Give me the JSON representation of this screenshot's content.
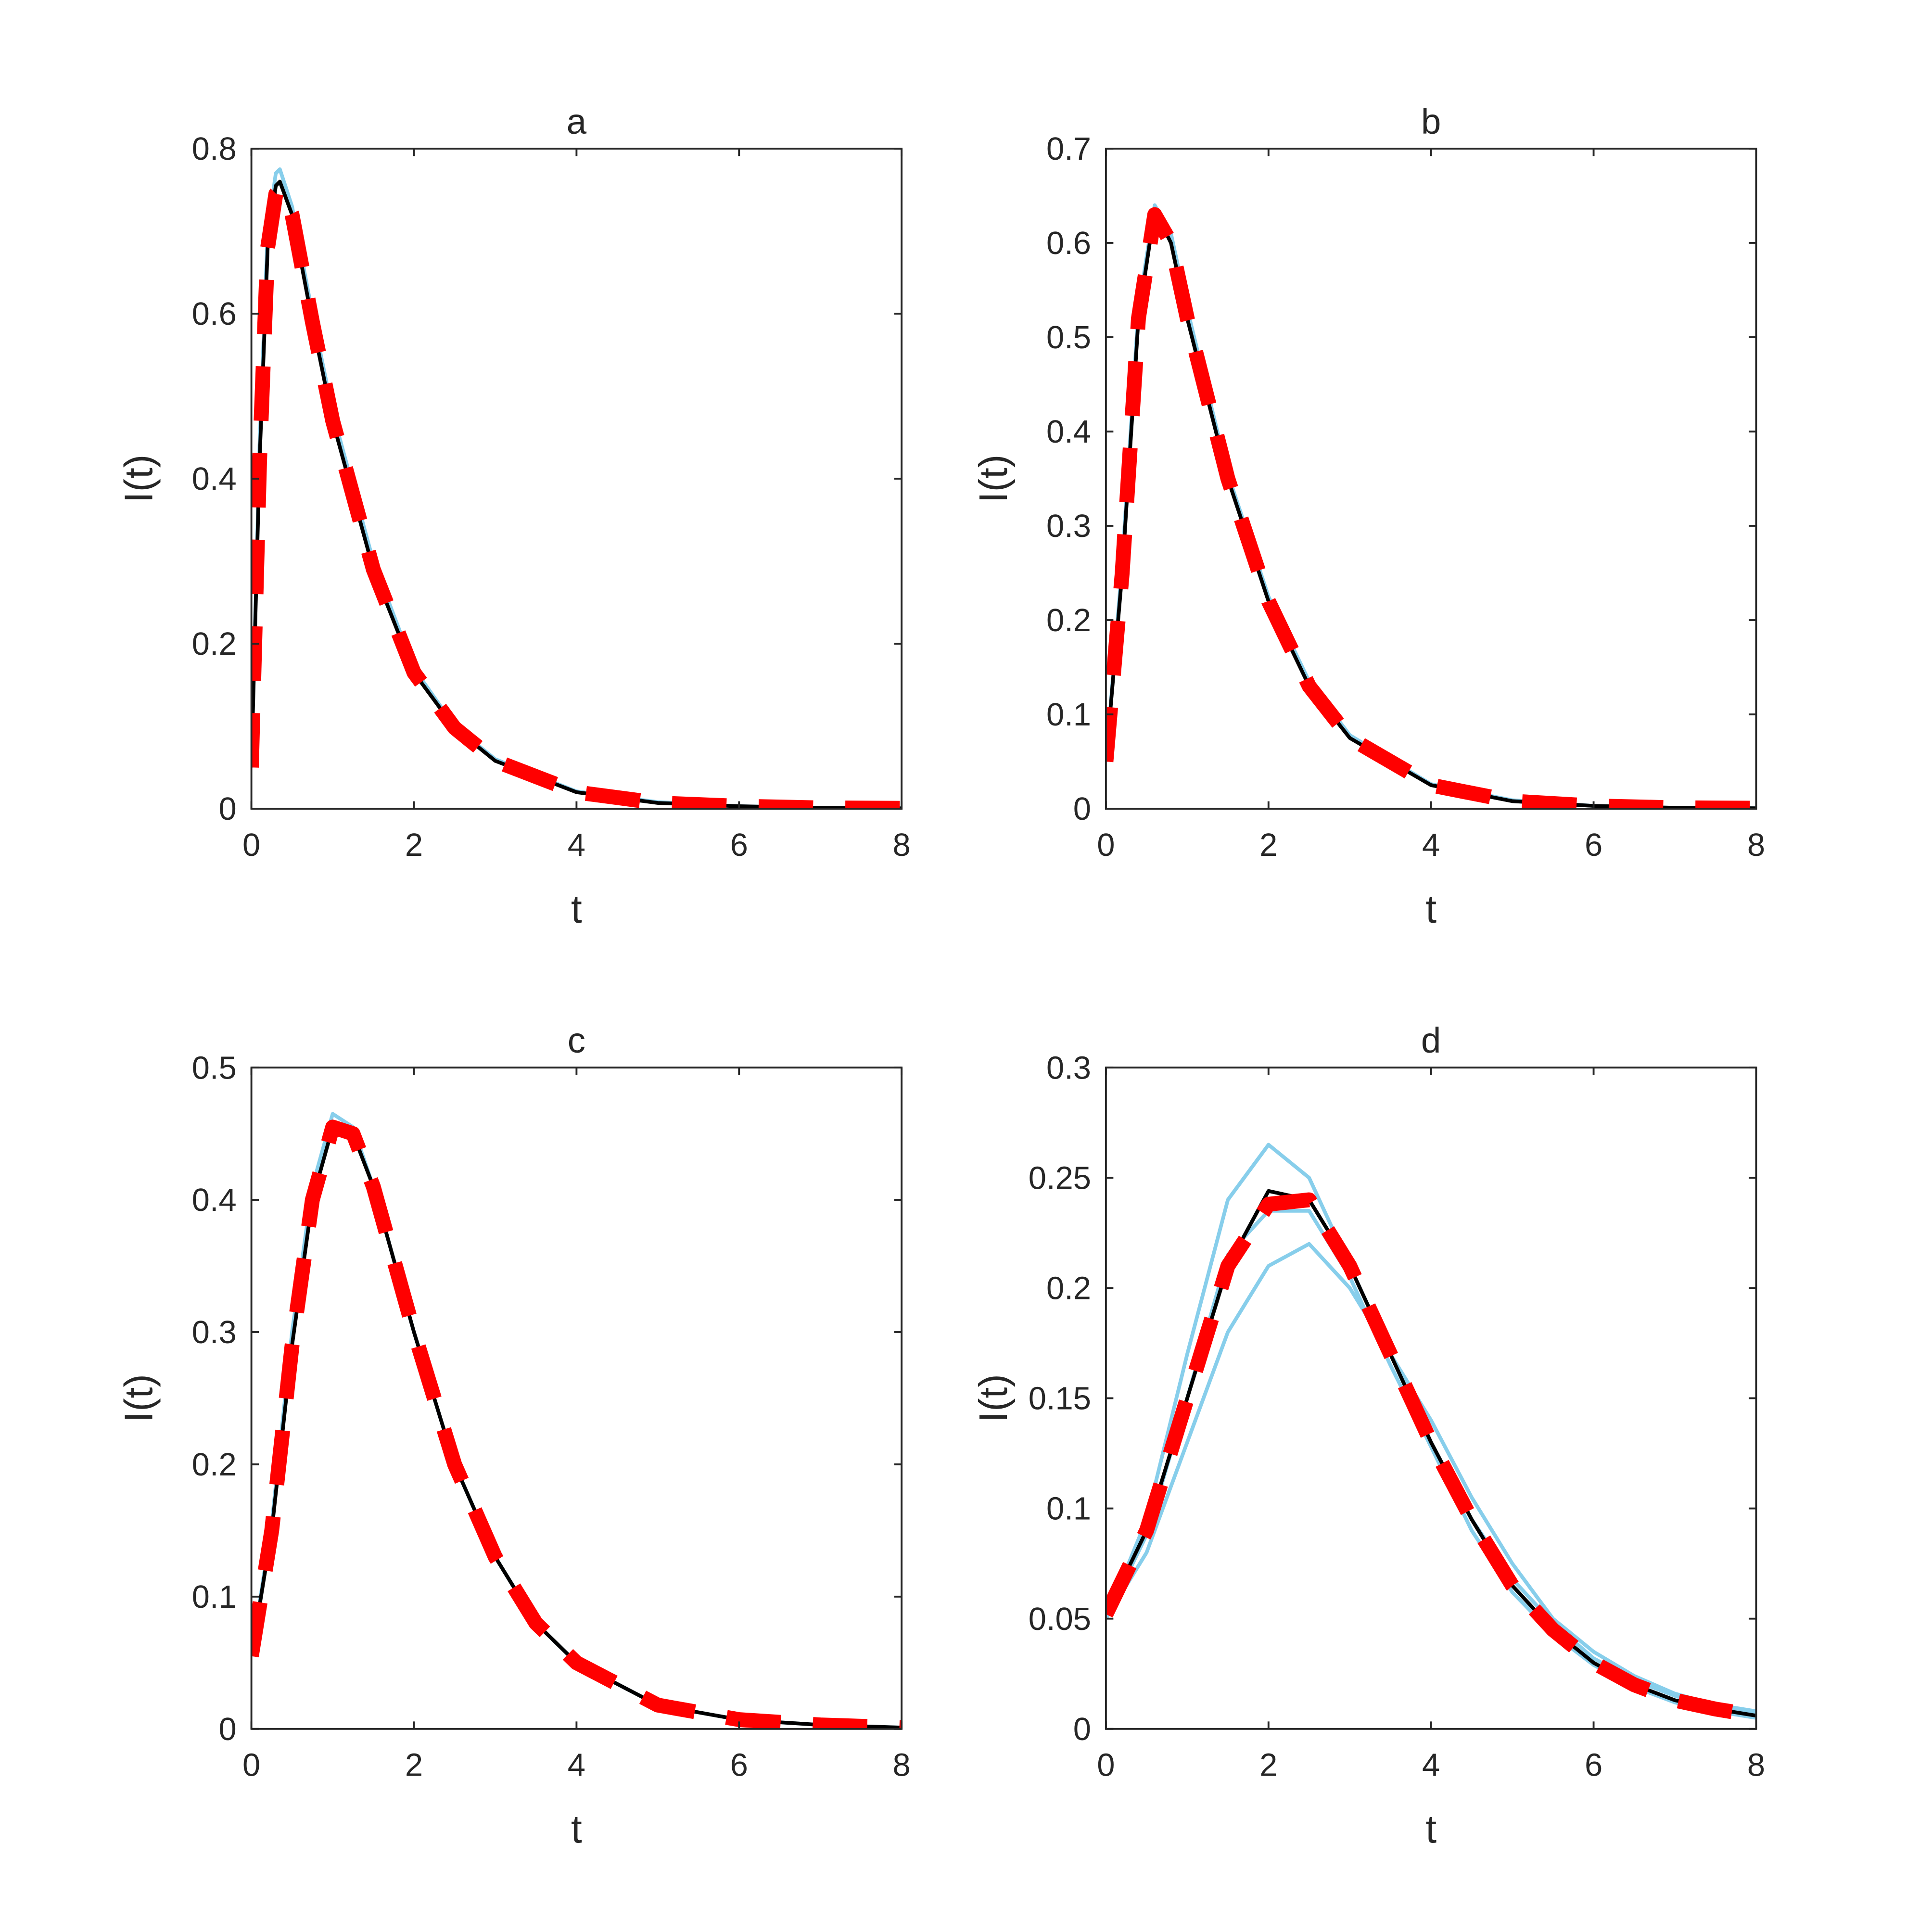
{
  "chart_data": [
    {
      "type": "line",
      "title": "a",
      "xlabel": "t",
      "ylabel": "I(t)",
      "x": [
        0,
        0.1,
        0.2,
        0.3,
        0.35,
        0.5,
        0.75,
        1,
        1.5,
        2,
        2.5,
        3,
        4,
        5,
        6,
        7,
        8
      ],
      "series": [
        {
          "color": "#87ceeb",
          "style": "solid",
          "values": [
            0.05,
            0.44,
            0.7,
            0.77,
            0.775,
            0.73,
            0.6,
            0.48,
            0.3,
            0.17,
            0.1,
            0.06,
            0.021,
            0.008,
            0.003,
            0.001,
            0.0005
          ]
        },
        {
          "color": "#000000",
          "style": "solid",
          "values": [
            0.05,
            0.42,
            0.68,
            0.755,
            0.76,
            0.72,
            0.59,
            0.47,
            0.29,
            0.165,
            0.098,
            0.058,
            0.02,
            0.007,
            0.003,
            0.001,
            0.0005
          ]
        },
        {
          "color": "#ff0000",
          "style": "dashed",
          "values": [
            0.05,
            0.42,
            0.68,
            0.745,
            0.75,
            0.72,
            0.59,
            0.47,
            0.29,
            0.165,
            0.098,
            0.058,
            0.02,
            0.007,
            0.003,
            0.001,
            0.0005
          ]
        }
      ],
      "xlim": [
        0,
        8
      ],
      "ylim": [
        0,
        0.8
      ],
      "xticks": [
        0,
        2,
        4,
        6,
        8
      ],
      "yticks": [
        0,
        0.2,
        0.4,
        0.6,
        0.8
      ]
    },
    {
      "type": "line",
      "title": "b",
      "xlabel": "t",
      "ylabel": "I(t)",
      "x": [
        0,
        0.2,
        0.4,
        0.6,
        0.8,
        1,
        1.5,
        2,
        2.5,
        3,
        4,
        5,
        6,
        7,
        8
      ],
      "series": [
        {
          "color": "#87ceeb",
          "style": "solid",
          "values": [
            0.05,
            0.26,
            0.53,
            0.64,
            0.61,
            0.53,
            0.355,
            0.225,
            0.135,
            0.078,
            0.026,
            0.009,
            0.003,
            0.001,
            0.0005
          ]
        },
        {
          "color": "#000000",
          "style": "solid",
          "values": [
            0.05,
            0.25,
            0.52,
            0.635,
            0.6,
            0.52,
            0.35,
            0.22,
            0.13,
            0.075,
            0.025,
            0.008,
            0.003,
            0.001,
            0.0005
          ]
        },
        {
          "color": "#ff0000",
          "style": "dashed",
          "values": [
            0.05,
            0.25,
            0.52,
            0.63,
            0.6,
            0.52,
            0.35,
            0.22,
            0.13,
            0.075,
            0.025,
            0.008,
            0.003,
            0.001,
            0.0005
          ]
        }
      ],
      "xlim": [
        0,
        8
      ],
      "ylim": [
        0,
        0.7
      ],
      "xticks": [
        0,
        2,
        4,
        6,
        8
      ],
      "yticks": [
        0,
        0.1,
        0.2,
        0.3,
        0.4,
        0.5,
        0.6,
        0.7
      ]
    },
    {
      "type": "line",
      "title": "c",
      "xlabel": "t",
      "ylabel": "I(t)",
      "x": [
        0,
        0.25,
        0.5,
        0.75,
        1,
        1.25,
        1.5,
        2,
        2.5,
        3,
        3.5,
        4,
        5,
        6,
        7,
        8
      ],
      "series": [
        {
          "color": "#87ceeb",
          "style": "solid",
          "values": [
            0.055,
            0.155,
            0.3,
            0.41,
            0.465,
            0.455,
            0.41,
            0.3,
            0.2,
            0.13,
            0.08,
            0.05,
            0.018,
            0.007,
            0.003,
            0.001
          ]
        },
        {
          "color": "#000000",
          "style": "solid",
          "values": [
            0.055,
            0.15,
            0.29,
            0.4,
            0.455,
            0.45,
            0.41,
            0.3,
            0.2,
            0.13,
            0.08,
            0.05,
            0.018,
            0.007,
            0.003,
            0.001
          ]
        },
        {
          "color": "#ff0000",
          "style": "dashed",
          "values": [
            0.055,
            0.15,
            0.29,
            0.4,
            0.455,
            0.45,
            0.41,
            0.3,
            0.2,
            0.13,
            0.08,
            0.05,
            0.018,
            0.007,
            0.003,
            0.001
          ]
        }
      ],
      "xlim": [
        0,
        8
      ],
      "ylim": [
        0,
        0.5
      ],
      "xticks": [
        0,
        2,
        4,
        6,
        8
      ],
      "yticks": [
        0,
        0.1,
        0.2,
        0.3,
        0.4,
        0.5
      ]
    },
    {
      "type": "line",
      "title": "d",
      "xlabel": "t",
      "ylabel": "I(t)",
      "x": [
        0,
        0.5,
        1,
        1.5,
        2,
        2.5,
        3,
        3.5,
        4,
        4.5,
        5,
        5.5,
        6,
        6.5,
        7,
        7.5,
        8
      ],
      "series": [
        {
          "color": "#87ceeb",
          "style": "solid",
          "values": [
            0.05,
            0.095,
            0.17,
            0.24,
            0.265,
            0.25,
            0.21,
            0.17,
            0.13,
            0.095,
            0.068,
            0.048,
            0.032,
            0.022,
            0.015,
            0.01,
            0.007
          ]
        },
        {
          "color": "#87ceeb",
          "style": "solid",
          "values": [
            0.05,
            0.08,
            0.13,
            0.18,
            0.21,
            0.22,
            0.2,
            0.17,
            0.14,
            0.105,
            0.075,
            0.05,
            0.035,
            0.024,
            0.016,
            0.011,
            0.008
          ]
        },
        {
          "color": "#87ceeb",
          "style": "solid",
          "values": [
            0.05,
            0.088,
            0.15,
            0.215,
            0.235,
            0.235,
            0.205,
            0.165,
            0.128,
            0.09,
            0.062,
            0.043,
            0.029,
            0.019,
            0.012,
            0.008,
            0.005
          ]
        },
        {
          "color": "#000000",
          "style": "solid",
          "values": [
            0.052,
            0.09,
            0.15,
            0.21,
            0.244,
            0.24,
            0.21,
            0.17,
            0.13,
            0.095,
            0.065,
            0.045,
            0.03,
            0.02,
            0.013,
            0.009,
            0.006
          ]
        },
        {
          "color": "#ff0000",
          "style": "dashed",
          "values": [
            0.052,
            0.09,
            0.15,
            0.21,
            0.238,
            0.24,
            0.21,
            0.17,
            0.13,
            0.095,
            0.065,
            0.045,
            0.03,
            0.02,
            0.013,
            0.009,
            0.006
          ]
        }
      ],
      "xlim": [
        0,
        8
      ],
      "ylim": [
        0,
        0.3
      ],
      "xticks": [
        0,
        2,
        4,
        6,
        8
      ],
      "yticks": [
        0,
        0.05,
        0.1,
        0.15,
        0.2,
        0.25,
        0.3
      ]
    }
  ]
}
